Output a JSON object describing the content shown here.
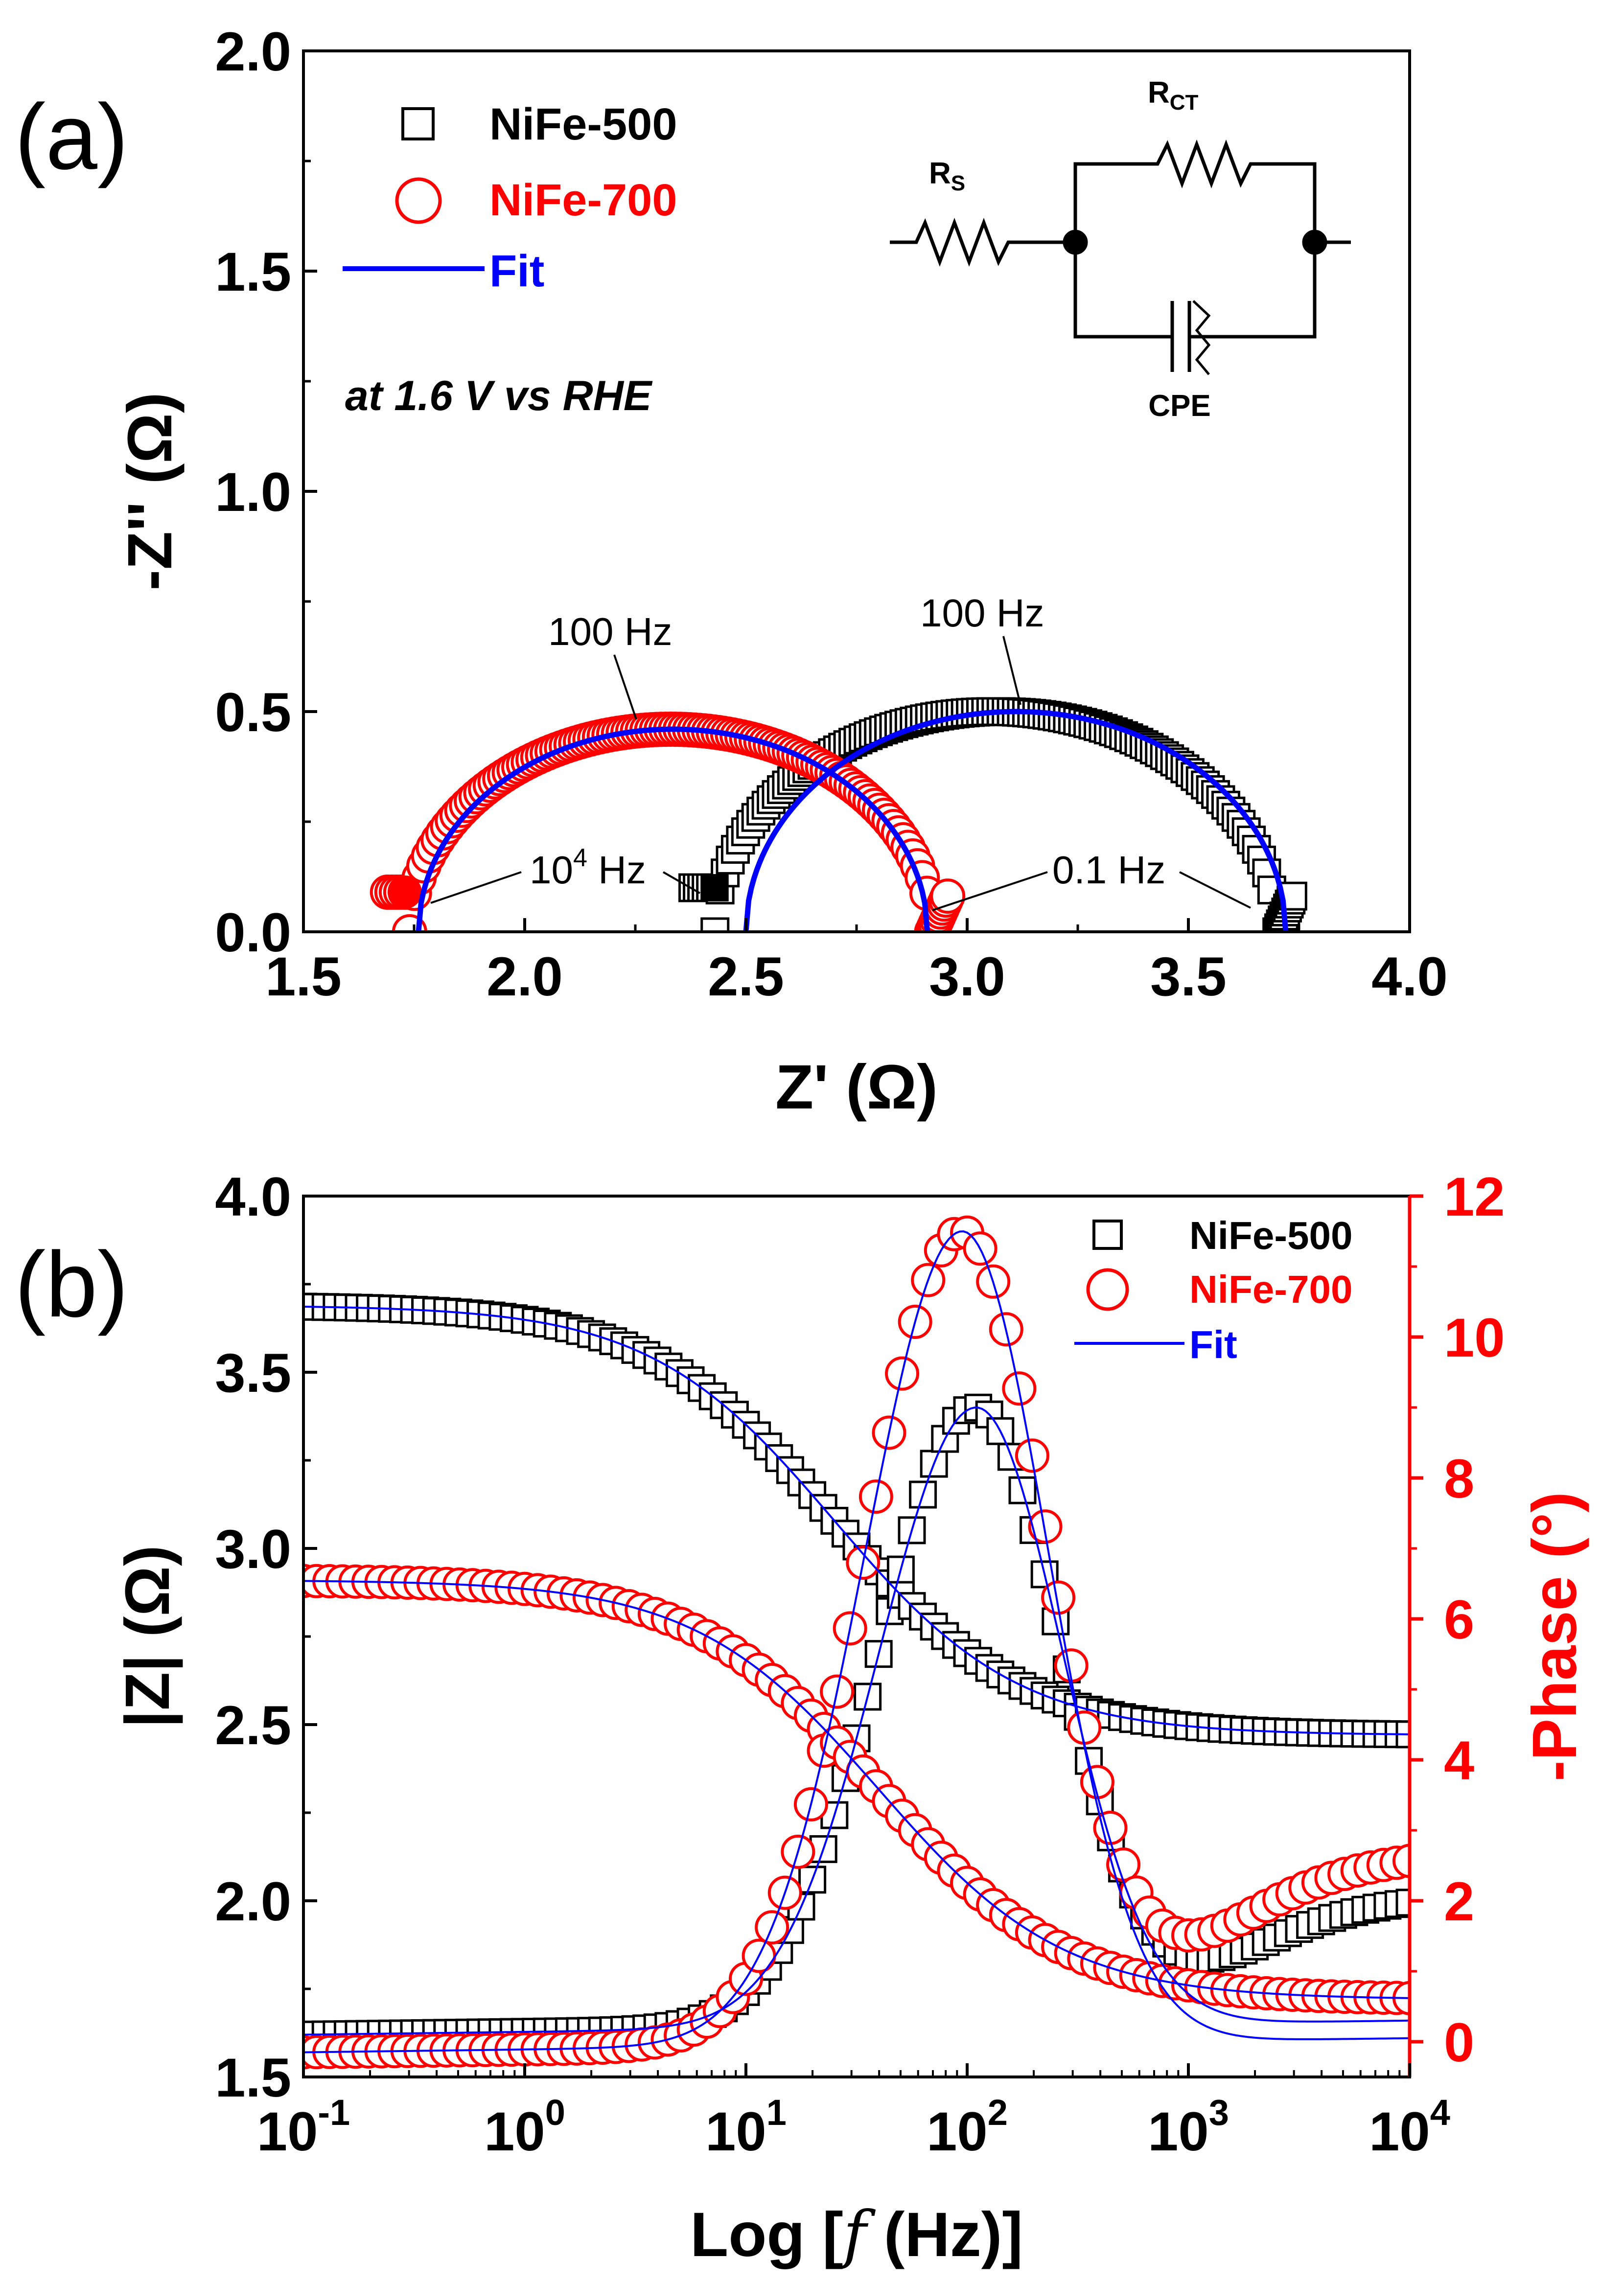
{
  "chart_data": [
    {
      "panel": "(a)",
      "type": "scatter",
      "title": "",
      "xlabel": "Z' (Ω)",
      "ylabel": "-Z'' (Ω)",
      "xlim": [
        1.5,
        4.0
      ],
      "ylim": [
        0.0,
        2.0
      ],
      "xticks": [
        "1.5",
        "2.0",
        "2.5",
        "3.0",
        "3.5",
        "4.0"
      ],
      "yticks": [
        "0.0",
        "0.5",
        "1.0",
        "1.5",
        "2.0"
      ],
      "condition": "at 1.6 V vs RHE",
      "legend": [
        {
          "label": "NiFe-500",
          "marker": "square",
          "color": "#000000"
        },
        {
          "label": "NiFe-700",
          "marker": "circle",
          "color": "#ff0000"
        },
        {
          "label": "Fit",
          "marker": "line",
          "color": "#0000ff"
        }
      ],
      "series": [
        {
          "name": "NiFe-500",
          "type": "semicircle",
          "x_start": 2.43,
          "x_end": 3.7,
          "x_fit_start": 2.5,
          "x_fit_end": 3.72,
          "peak": 0.5,
          "tail_y": 0.1
        },
        {
          "name": "NiFe-700",
          "type": "semicircle",
          "x_start": 1.74,
          "x_end": 2.92,
          "x_fit_start": 1.76,
          "x_fit_end": 2.91,
          "peak": 0.46,
          "tail_y": 0.09
        }
      ],
      "annotations": [
        {
          "text": "100 Hz",
          "near": "NiFe-700 apex"
        },
        {
          "text": "100 Hz",
          "near": "NiFe-500 apex"
        },
        {
          "text": "10",
          "sup": "4",
          "suffix": " Hz",
          "near": "high-frequency start"
        },
        {
          "text": "0.1 Hz",
          "near": "low-frequency end"
        }
      ],
      "circuit": {
        "rs_main": "R",
        "rs_sub": "S",
        "rct_main": "R",
        "rct_sub": "CT",
        "cpe": "CPE"
      }
    },
    {
      "panel": "(b)",
      "type": "scatter",
      "title": "",
      "xlabel": "Log [f (Hz)]",
      "xlabel_parts": [
        "Log [",
        "f",
        " (Hz)]"
      ],
      "ylabel": "|Z| (Ω)",
      "ylabel_right": "-Phase (°)",
      "xscale": "log",
      "xlim": [
        0.1,
        10000
      ],
      "ylim": [
        1.5,
        4.0
      ],
      "ylim_right": [
        -0.5,
        12
      ],
      "xticks": [
        {
          "base": "10",
          "exp": "-1"
        },
        {
          "base": "10",
          "exp": "0"
        },
        {
          "base": "10",
          "exp": "1"
        },
        {
          "base": "10",
          "exp": "2"
        },
        {
          "base": "10",
          "exp": "3"
        },
        {
          "base": "10",
          "exp": "4"
        }
      ],
      "yticks": [
        "1.5",
        "2.0",
        "2.5",
        "3.0",
        "3.5",
        "4.0"
      ],
      "yticks_right": [
        "0",
        "2",
        "4",
        "6",
        "8",
        "10",
        "12"
      ],
      "legend": [
        {
          "label": "NiFe-500",
          "marker": "square",
          "color": "#000000"
        },
        {
          "label": "NiFe-700",
          "marker": "circle",
          "color": "#ff0000"
        },
        {
          "label": "Fit",
          "marker": "line",
          "color": "#0000ff"
        }
      ],
      "series": [
        {
          "name": "NiFe-500 |Z|",
          "axis": "left",
          "low_f_value": 3.69,
          "high_f_value": 2.47,
          "transition_hz": 25
        },
        {
          "name": "NiFe-700 |Z|",
          "axis": "left",
          "low_f_value": 2.91,
          "high_f_value": 1.72,
          "transition_hz": 40
        },
        {
          "name": "NiFe-500 -Phase",
          "axis": "right",
          "peak_value": 9.0,
          "peak_hz": 110,
          "low_f_value": 0.1,
          "high_f_value": 2.1
        },
        {
          "name": "NiFe-700 -Phase",
          "axis": "right",
          "peak_value": 11.5,
          "peak_hz": 95,
          "low_f_value": -0.15,
          "high_f_value": 2.7
        }
      ]
    }
  ]
}
